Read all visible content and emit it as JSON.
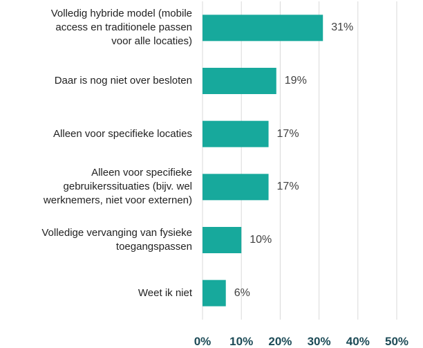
{
  "chart_data": {
    "type": "barh",
    "categories": [
      "Volledig hybride model (mobile\naccess en traditionele passen\nvoor alle locaties)",
      "Daar is nog niet over besloten",
      "Alleen voor specifieke locaties",
      "Alleen voor specifieke\ngebruikerssituaties (bijv. wel\nwerknemers, niet voor externen)",
      "Volledige vervanging van fysieke\ntoegangspassen",
      "Weet ik niet"
    ],
    "values": [
      31,
      19,
      17,
      17,
      10,
      6
    ],
    "value_labels": [
      "31%",
      "19%",
      "17%",
      "17%",
      "10%",
      "6%"
    ],
    "color": "#17a99c",
    "xlim": [
      0,
      50
    ],
    "xticks": [
      {
        "value": 0,
        "label": "0%"
      },
      {
        "value": 10,
        "label": "10%"
      },
      {
        "value": 20,
        "label": "20%"
      },
      {
        "value": 30,
        "label": "30%"
      },
      {
        "value": 40,
        "label": "40%"
      },
      {
        "value": 50,
        "label": "50%"
      }
    ],
    "grid": true
  }
}
